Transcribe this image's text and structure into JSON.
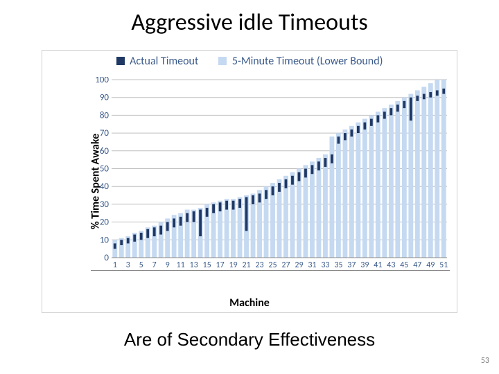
{
  "slide": {
    "title": "Aggressive idle Timeouts",
    "subtitle": "Are of Secondary Effectiveness",
    "page_number": "53"
  },
  "chart": {
    "type": "bar",
    "legend": {
      "series1": {
        "label": "Actual Timeout",
        "color": "#1f3864",
        "swatch_color": "#1f3864"
      },
      "series2": {
        "label": "5-Minute Timeout (Lower Bound)",
        "color": "#c5d9f1",
        "swatch_color": "#c5d9f1"
      }
    },
    "ylabel": "% Time Spent Awake",
    "xlabel": "Machine",
    "ylim": [
      0,
      100
    ],
    "ytick_step": 10,
    "x_categories": [
      1,
      2,
      3,
      4,
      5,
      6,
      7,
      8,
      9,
      10,
      11,
      12,
      13,
      14,
      15,
      16,
      17,
      18,
      19,
      20,
      21,
      22,
      23,
      24,
      25,
      26,
      27,
      28,
      29,
      30,
      31,
      32,
      33,
      34,
      35,
      36,
      37,
      38,
      39,
      40,
      41,
      42,
      43,
      44,
      45,
      46,
      47,
      48,
      49,
      50,
      51
    ],
    "x_tick_labels": [
      1,
      3,
      5,
      7,
      9,
      11,
      13,
      15,
      17,
      19,
      21,
      23,
      25,
      27,
      29,
      31,
      33,
      35,
      37,
      39,
      41,
      43,
      45,
      47,
      49,
      51
    ],
    "series2_values": [
      10,
      11,
      12,
      14,
      15,
      17,
      18,
      20,
      22,
      24,
      25,
      27,
      27,
      28,
      30,
      31,
      32,
      33,
      33,
      34,
      35,
      36,
      38,
      40,
      42,
      44,
      46,
      48,
      50,
      52,
      54,
      56,
      58,
      68,
      70,
      72,
      74,
      76,
      78,
      80,
      82,
      84,
      86,
      88,
      90,
      92,
      94,
      96,
      98,
      100,
      100
    ],
    "series1_tops": [
      8,
      10,
      11,
      13,
      14,
      16,
      17,
      18,
      20,
      22,
      23,
      25,
      26,
      27,
      28,
      30,
      31,
      32,
      32,
      33,
      34,
      35,
      36,
      38,
      40,
      42,
      44,
      46,
      48,
      50,
      52,
      54,
      56,
      58,
      68,
      70,
      72,
      74,
      76,
      78,
      80,
      82,
      84,
      86,
      88,
      90,
      91,
      92,
      93,
      94,
      95
    ],
    "series1_bottoms": [
      5,
      7,
      8,
      9,
      10,
      11,
      12,
      13,
      15,
      17,
      18,
      20,
      20,
      12,
      23,
      25,
      26,
      27,
      27,
      28,
      15,
      30,
      31,
      33,
      35,
      37,
      39,
      41,
      43,
      45,
      47,
      49,
      51,
      53,
      64,
      66,
      68,
      70,
      72,
      74,
      76,
      78,
      80,
      82,
      84,
      77,
      88,
      89,
      90,
      91,
      92
    ],
    "grid_color": "#bfbfbf",
    "axis_color": "#888888",
    "background_color": "#ffffff",
    "title_fontsize": 34,
    "label_fontsize": 16,
    "tick_fontsize": 13
  }
}
